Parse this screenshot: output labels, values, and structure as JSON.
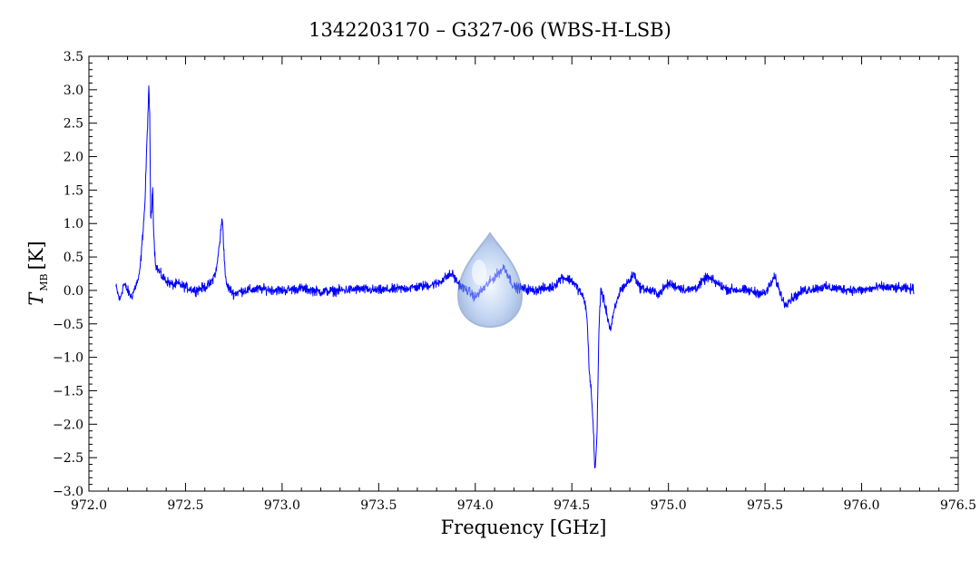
{
  "chart_data": {
    "type": "line",
    "title": "1342203170 – G327-06 (WBS-H-LSB)",
    "xlabel": "Frequency [GHz]",
    "ylabel": {
      "symbol": "T",
      "subscript": "MB",
      "unit": "[K]"
    },
    "xlim": [
      972.0,
      976.5
    ],
    "ylim": [
      -3.0,
      3.5
    ],
    "x_ticks": [
      "972.0",
      "972.5",
      "973.0",
      "973.5",
      "974.0",
      "974.5",
      "975.0",
      "975.5",
      "976.0",
      "976.5"
    ],
    "y_ticks": [
      "3.5",
      "3.0",
      "2.5",
      "2.0",
      "1.5",
      "1.0",
      "0.5",
      "0.0",
      "−0.5",
      "−1.0",
      "−1.5",
      "−2.0",
      "−2.5",
      "−3.0"
    ],
    "grid": false,
    "series_color": "#0000ff",
    "series": [
      {
        "x": [
          972.14,
          972.16,
          972.18,
          972.2,
          972.22,
          972.24,
          972.26,
          972.27,
          972.28,
          972.29,
          972.3,
          972.31,
          972.315,
          972.32,
          972.325,
          972.33,
          972.335,
          972.34,
          972.345,
          972.35,
          972.36,
          972.37,
          972.38,
          972.4,
          972.42,
          972.44,
          972.46,
          972.5,
          972.55,
          972.6,
          972.63,
          972.66,
          972.68,
          972.69,
          972.695,
          972.7,
          972.71,
          972.72,
          972.75,
          972.8,
          972.9,
          973.0,
          973.1,
          973.2,
          973.3,
          973.4,
          973.5,
          973.6,
          973.7,
          973.8,
          973.85,
          973.88,
          973.9,
          973.93,
          973.96,
          974.0,
          974.05,
          974.1,
          974.15,
          974.2,
          974.3,
          974.4,
          974.45,
          974.5,
          974.55,
          974.57,
          974.58,
          974.59,
          974.6,
          974.61,
          974.62,
          974.63,
          974.64,
          974.65,
          974.66,
          974.67,
          974.7,
          974.72,
          974.75,
          974.8,
          974.82,
          974.85,
          974.9,
          974.95,
          975.0,
          975.1,
          975.15,
          975.2,
          975.3,
          975.4,
          975.5,
          975.55,
          975.6,
          975.7,
          975.8,
          975.9,
          976.0,
          976.1,
          976.2,
          976.27
        ],
        "y": [
          0.05,
          -0.15,
          0.1,
          0.0,
          -0.1,
          0.05,
          0.2,
          0.5,
          0.9,
          1.3,
          2.2,
          3.0,
          2.6,
          1.0,
          1.2,
          1.6,
          0.9,
          0.6,
          0.4,
          0.35,
          0.3,
          0.25,
          0.2,
          0.15,
          0.1,
          0.08,
          0.1,
          0.05,
          0.0,
          0.05,
          0.1,
          0.3,
          0.8,
          1.1,
          0.85,
          0.5,
          0.1,
          0.05,
          -0.05,
          0.0,
          0.02,
          0.0,
          0.03,
          -0.02,
          0.0,
          0.02,
          0.0,
          0.02,
          0.05,
          0.1,
          0.2,
          0.25,
          0.15,
          0.05,
          0.0,
          -0.1,
          0.05,
          0.2,
          0.35,
          0.05,
          0.0,
          0.05,
          0.2,
          0.15,
          -0.05,
          -0.2,
          -0.5,
          -1.2,
          -1.5,
          -2.0,
          -2.7,
          -2.2,
          -0.6,
          0.05,
          -0.1,
          -0.2,
          -0.6,
          -0.3,
          0.0,
          0.15,
          0.25,
          0.05,
          0.0,
          -0.05,
          0.1,
          0.0,
          0.05,
          0.2,
          0.02,
          0.0,
          -0.05,
          0.2,
          -0.2,
          0.0,
          0.05,
          0.02,
          0.0,
          0.05,
          0.03,
          0.02
        ]
      }
    ]
  }
}
